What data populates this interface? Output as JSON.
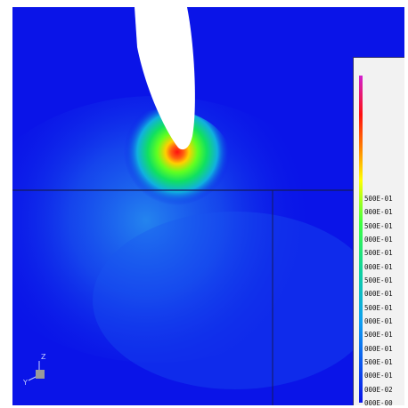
{
  "viewport": {
    "header_label": "",
    "background_color": "#0a14e8"
  },
  "legend": {
    "title": "",
    "entries": [
      "",
      "",
      "",
      "",
      "",
      "",
      "",
      "",
      "",
      "500E-01",
      "000E-01",
      "500E-01",
      "000E-01",
      "500E-01",
      "000E-01",
      "500E-01",
      "000E-01",
      "500E-01",
      "000E-01",
      "500E-01",
      "000E-01",
      "500E-01",
      "000E-01",
      "000E-02",
      "000E-00"
    ]
  },
  "axis_triad": {
    "z_label": "Z",
    "y_label": "Y"
  }
}
